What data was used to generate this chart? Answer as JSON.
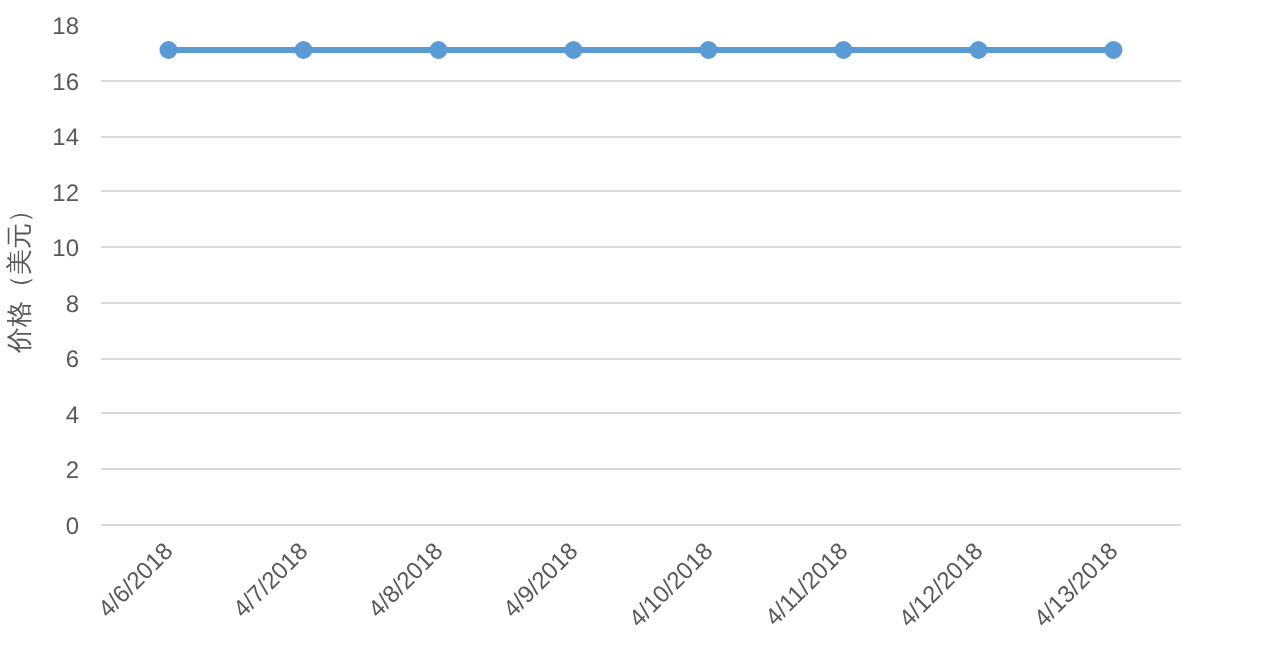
{
  "chart_data": {
    "type": "line",
    "ylabel": "价格（美元）",
    "categories": [
      "4/6/2018",
      "4/7/2018",
      "4/8/2018",
      "4/9/2018",
      "4/10/2018",
      "4/11/2018",
      "4/12/2018",
      "4/13/2018"
    ],
    "series": [
      {
        "color": "#5b9bd5",
        "values": [
          17.1,
          17.1,
          17.1,
          17.1,
          17.1,
          17.1,
          17.1,
          17.1
        ]
      }
    ],
    "ylim": [
      0,
      18
    ],
    "yticks": [
      0,
      2,
      4,
      6,
      8,
      10,
      12,
      14,
      16,
      18
    ],
    "grid": "y",
    "marker": "circle",
    "line_style": "solid"
  }
}
